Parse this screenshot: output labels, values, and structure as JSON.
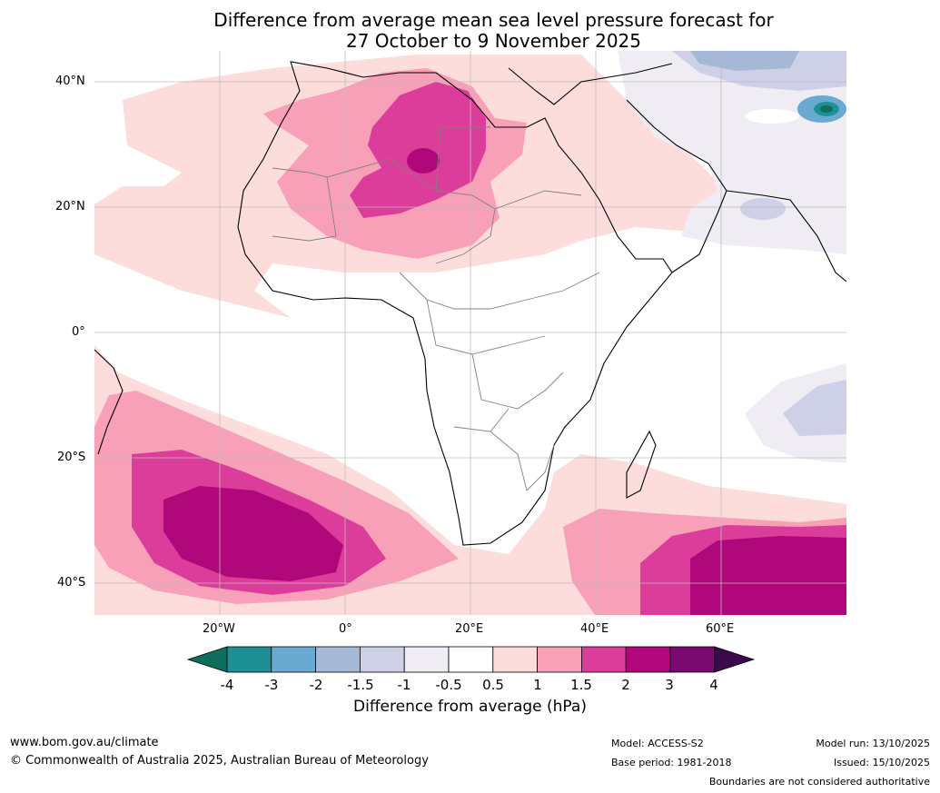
{
  "title": {
    "line1": "Difference from average mean sea level pressure forecast for",
    "line2": "27 October to 9 November 2025"
  },
  "axes": {
    "lat_labels": [
      "40°N",
      "20°N",
      "0°",
      "20°S",
      "40°S"
    ],
    "lon_labels": [
      "20°W",
      "0°",
      "20°E",
      "40°E",
      "60°E"
    ]
  },
  "colorbar": {
    "ticks": [
      "-4",
      "-3",
      "-2",
      "-1.5",
      "-1",
      "-0.5",
      "0.5",
      "1",
      "1.5",
      "2",
      "3",
      "4"
    ],
    "colors": [
      "#0d6e5e",
      "#1f8f96",
      "#6aaad1",
      "#a5b8d6",
      "#cdd0e6",
      "#f0ecf4",
      "#ffffff",
      "#fddcdc",
      "#f7a0b8",
      "#dc3c9a",
      "#b0087a",
      "#7a0a70",
      "#3c0a4a"
    ],
    "label": "Difference from average (hPa)"
  },
  "footer": {
    "website": "www.bom.gov.au/climate",
    "copyright": "© Commonwealth of Australia 2025, Australian Bureau of Meteorology",
    "model": "Model: ACCESS-S2",
    "base_period": "Base period: 1981-2018",
    "model_run": "Model run: 13/10/2025",
    "issued": "Issued: 15/10/2025",
    "disclaimer": "Boundaries are not considered authoritative"
  }
}
